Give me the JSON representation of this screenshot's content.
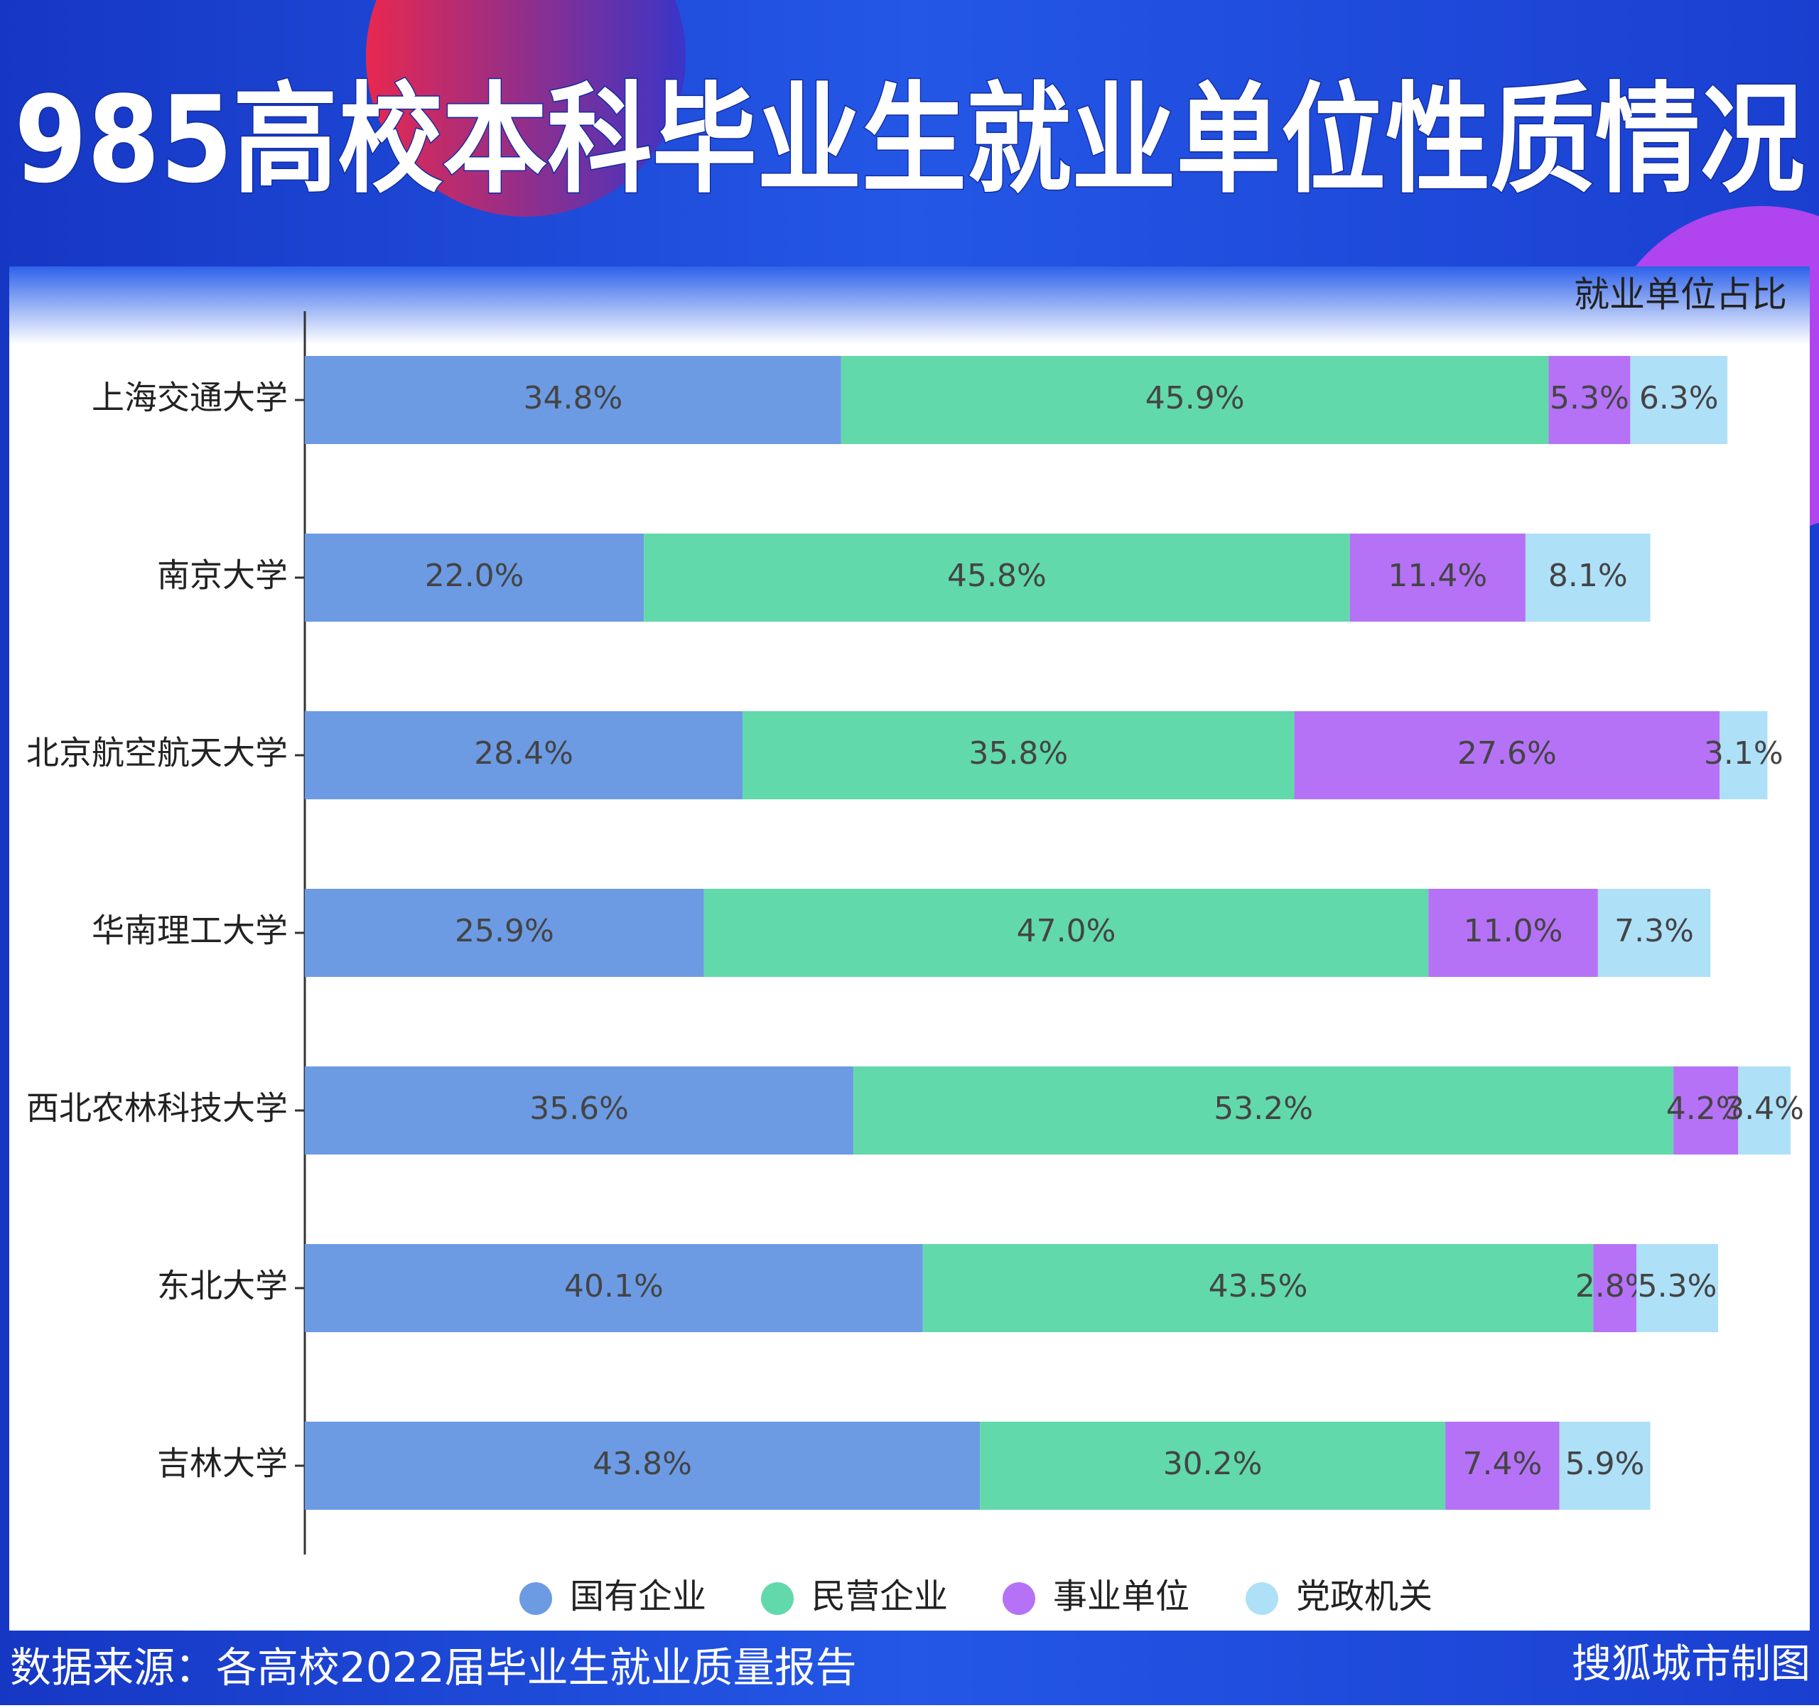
{
  "chart_data": {
    "type": "stacked-bar-horizontal",
    "title": "985高校本科毕业生就业单位性质情况",
    "subtitle": "就业单位占比",
    "categories": [
      "上海交通大学",
      "南京大学",
      "北京航空航天大学",
      "华南理工大学",
      "西北农林科技大学",
      "东北大学",
      "吉林大学"
    ],
    "series": [
      {
        "name": "国有企业",
        "color": "#6c9be4",
        "values": [
          34.8,
          22.0,
          28.4,
          25.9,
          35.6,
          40.1,
          43.8
        ],
        "value_labels": [
          "34.8%",
          "22.0%",
          "28.4%",
          "25.9%",
          "35.6%",
          "40.1%",
          "43.8%"
        ]
      },
      {
        "name": "民营企业",
        "color": "#62d9ab",
        "values": [
          45.9,
          45.8,
          35.8,
          47.0,
          53.2,
          43.5,
          30.2
        ],
        "value_labels": [
          "45.9%",
          "45.8%",
          "35.8%",
          "47.0%",
          "53.2%",
          "43.5%",
          "30.2%"
        ]
      },
      {
        "name": "事业单位",
        "color": "#b572f6",
        "values": [
          5.3,
          11.4,
          27.6,
          11.0,
          4.2,
          2.8,
          7.4
        ],
        "value_labels": [
          "5.3%",
          "11.4%",
          "27.6%",
          "11.0%",
          "4.2%",
          "2.8%",
          "7.4%"
        ]
      },
      {
        "name": "党政机关",
        "color": "#aee0f8",
        "values": [
          6.3,
          8.1,
          3.1,
          7.3,
          3.4,
          5.3,
          5.9
        ],
        "value_labels": [
          "6.3%",
          "8.1%",
          "3.1%",
          "7.3%",
          "3.4%",
          "5.3%",
          "5.9%"
        ]
      }
    ],
    "xlim": [
      0,
      97
    ],
    "source": "数据来源：各高校2022届毕业生就业质量报告",
    "credit": "搜狐城市制图"
  }
}
